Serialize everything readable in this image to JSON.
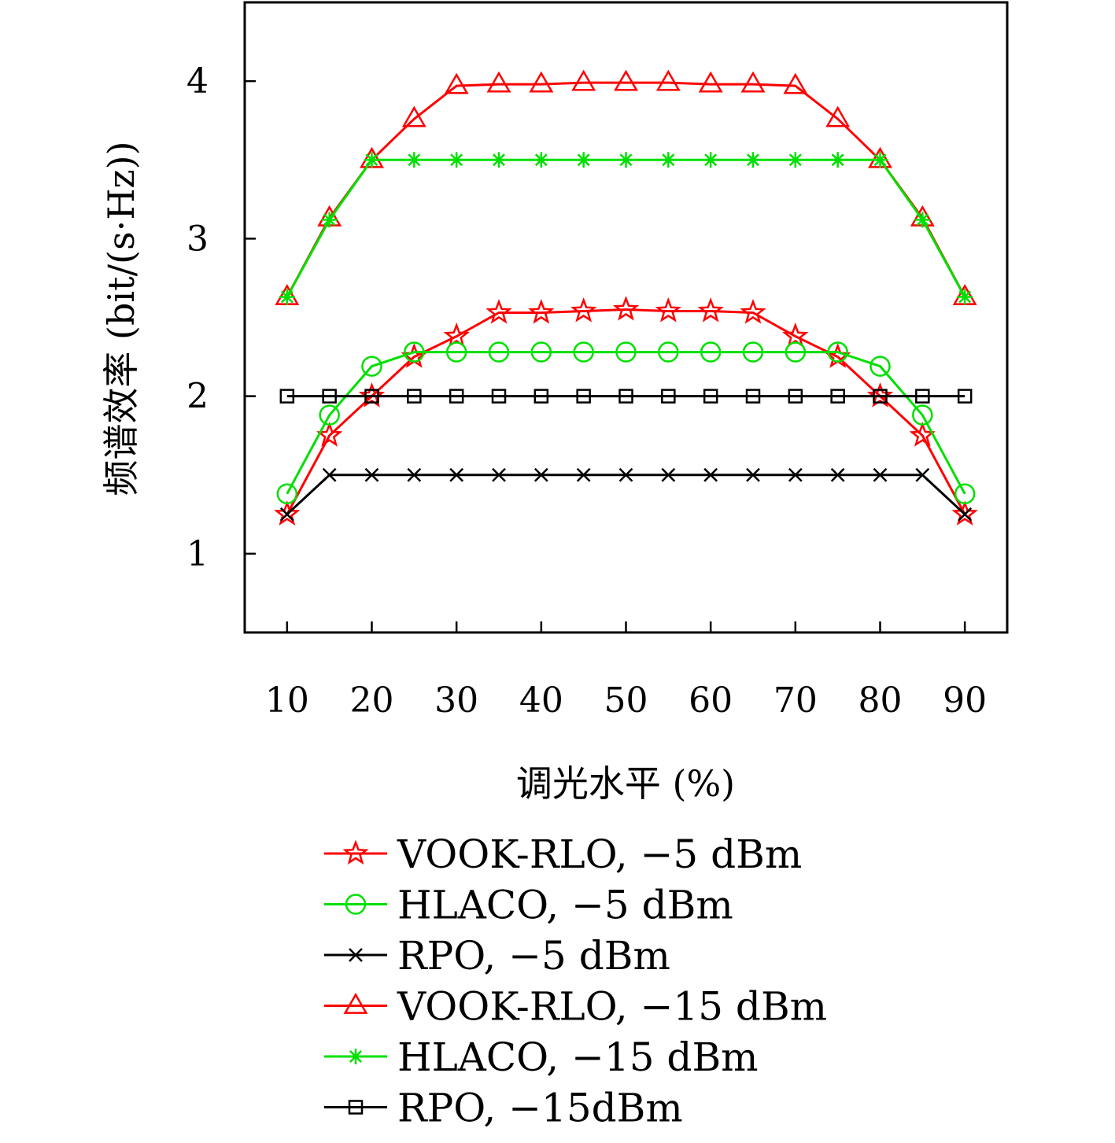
{
  "chart_data": {
    "type": "line",
    "xlabel": "调光水平 (%)",
    "ylabel": "频谱效率 (bit/(s·Hz))",
    "xlim": [
      5,
      95
    ],
    "ylim": [
      0.5,
      4.5
    ],
    "xticks": [
      10,
      20,
      30,
      40,
      50,
      60,
      70,
      80,
      90
    ],
    "yticks": [
      1,
      2,
      3,
      4
    ],
    "x": [
      10,
      15,
      20,
      25,
      30,
      35,
      40,
      45,
      50,
      55,
      60,
      65,
      70,
      75,
      80,
      85,
      90
    ],
    "grid": false,
    "legend_position": "below",
    "series": [
      {
        "name": "VOOK-RLO, −5 dBm",
        "color": "#ff0000",
        "marker": "star",
        "values": [
          1.25,
          1.75,
          2.0,
          2.25,
          2.38,
          2.53,
          2.53,
          2.54,
          2.55,
          2.54,
          2.54,
          2.53,
          2.38,
          2.25,
          2.0,
          1.75,
          1.25
        ]
      },
      {
        "name": "HLACO, −5 dBm",
        "color": "#00e000",
        "marker": "circle",
        "values": [
          1.38,
          1.88,
          2.19,
          2.28,
          2.28,
          2.28,
          2.28,
          2.28,
          2.28,
          2.28,
          2.28,
          2.28,
          2.28,
          2.28,
          2.19,
          1.88,
          1.38
        ]
      },
      {
        "name": "RPO, −5 dBm",
        "color": "#000000",
        "marker": "x",
        "values": [
          1.25,
          1.5,
          1.5,
          1.5,
          1.5,
          1.5,
          1.5,
          1.5,
          1.5,
          1.5,
          1.5,
          1.5,
          1.5,
          1.5,
          1.5,
          1.5,
          1.25
        ]
      },
      {
        "name": "VOOK-RLO, −15 dBm",
        "color": "#ff0000",
        "marker": "triangle",
        "values": [
          2.63,
          3.13,
          3.5,
          3.76,
          3.97,
          3.98,
          3.98,
          3.99,
          3.99,
          3.99,
          3.98,
          3.98,
          3.97,
          3.76,
          3.5,
          3.13,
          2.63
        ]
      },
      {
        "name": "HLACO, −15 dBm",
        "color": "#00e000",
        "marker": "asterisk",
        "values": [
          2.63,
          3.12,
          3.5,
          3.5,
          3.5,
          3.5,
          3.5,
          3.5,
          3.5,
          3.5,
          3.5,
          3.5,
          3.5,
          3.5,
          3.5,
          3.12,
          2.63
        ]
      },
      {
        "name": "RPO, −15dBm",
        "color": "#000000",
        "marker": "square",
        "values": [
          2.0,
          2.0,
          2.0,
          2.0,
          2.0,
          2.0,
          2.0,
          2.0,
          2.0,
          2.0,
          2.0,
          2.0,
          2.0,
          2.0,
          2.0,
          2.0,
          2.0
        ]
      }
    ]
  }
}
